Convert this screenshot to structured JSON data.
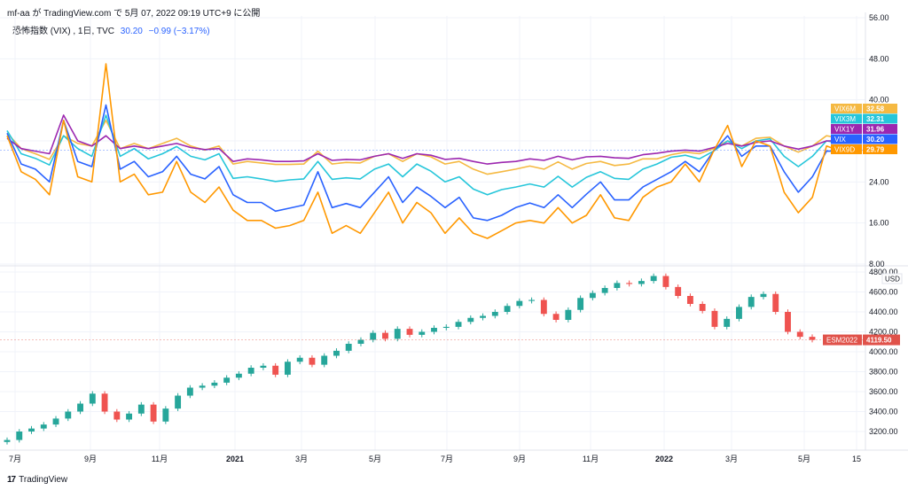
{
  "header": {
    "author": "mf-aa",
    "via": "が",
    "platform": "TradingView.com",
    "rest": "で 5月 07, 2022 09:19 UTC+9 に公開"
  },
  "legend": {
    "title": "恐怖指数 (VIX) , 1日, TVC",
    "value": "30.20",
    "change": "−0.99 (−3.17%)"
  },
  "footer": {
    "brand": "TradingView"
  },
  "colors": {
    "VIX": "#2962ff",
    "VIX9D": "#ff9800",
    "VIX3M": "#26c6da",
    "VIX6M": "#f5b942",
    "VIX1Y": "#9c27b0",
    "ESM2022": "#e0524a",
    "up": "#26a69a",
    "down": "#ef5350"
  },
  "chart_data": [
    {
      "type": "line",
      "title": "恐怖指数 (VIX) , 1日, TVC",
      "ylim": [
        8,
        56
      ],
      "y_ticks": [
        "56.00",
        "48.00",
        "40.00",
        "32.00",
        "24.00",
        "16.00",
        "8.00"
      ],
      "x_labels": [
        "7月",
        "9月",
        "11月",
        "2021",
        "3月",
        "5月",
        "7月",
        "9月",
        "11月",
        "2022",
        "3月",
        "5月",
        "15"
      ],
      "series": [
        {
          "name": "VIX6M",
          "last": "32.58",
          "values": [
            33.5,
            30.5,
            29.5,
            28.4,
            33,
            31.5,
            31,
            36,
            30.5,
            31.5,
            30.5,
            31.5,
            32.5,
            31,
            30.2,
            31,
            27.5,
            28,
            27.7,
            27.4,
            27.4,
            27.5,
            30,
            27.5,
            27.8,
            27.7,
            29,
            29.5,
            28,
            29.5,
            28.9,
            27.5,
            28,
            26.5,
            25.5,
            26,
            26.5,
            27.1,
            26.5,
            27.9,
            26.5,
            27.6,
            28,
            27.2,
            27.5,
            28.5,
            28.5,
            29.3,
            29.8,
            29.5,
            30.5,
            32,
            31,
            32.5,
            32.7,
            31,
            29.8,
            31,
            33,
            32.5,
            32.58
          ]
        },
        {
          "name": "VIX3M",
          "last": "32.31",
          "values": [
            34,
            29.5,
            28.6,
            27.3,
            33,
            30.5,
            29,
            37,
            29,
            30.5,
            28.5,
            29.5,
            30.9,
            29,
            28.3,
            29.5,
            24.7,
            25,
            24.6,
            24.1,
            24.4,
            24.6,
            28,
            24.5,
            24.8,
            24.6,
            26.5,
            27.5,
            25,
            27.5,
            26.1,
            24,
            25,
            22.6,
            21.5,
            22.5,
            23,
            23.6,
            23,
            25.1,
            23,
            24.9,
            26,
            24.7,
            24.5,
            26.5,
            27.5,
            28.8,
            29.2,
            28.5,
            30,
            32,
            30.5,
            32,
            32.4,
            29,
            27,
            29,
            32,
            31.5,
            32.31
          ]
        },
        {
          "name": "VIX1Y",
          "last": "31.96",
          "values": [
            32.5,
            30.5,
            30,
            29.5,
            37,
            32,
            31,
            33,
            30.5,
            31,
            30.5,
            31,
            31.5,
            30.7,
            30.3,
            30.5,
            28,
            28.5,
            28.3,
            28,
            28,
            28.1,
            29.5,
            28.2,
            28.4,
            28.3,
            29,
            29.5,
            28.6,
            29.5,
            29.2,
            28.4,
            28.6,
            28,
            27.5,
            27.8,
            28,
            28.5,
            28.2,
            29,
            28.3,
            28.9,
            29,
            28.7,
            28.6,
            29.3,
            29.6,
            30,
            30.2,
            30,
            30.7,
            31.5,
            31,
            31.7,
            32,
            31,
            30.4,
            31,
            32,
            32,
            31.96
          ]
        },
        {
          "name": "VIX",
          "last": "30.20",
          "values": [
            33.5,
            27.5,
            26.5,
            24,
            36,
            28,
            27,
            39,
            26.5,
            28,
            25,
            26,
            29,
            25.5,
            24.6,
            27,
            21.5,
            20,
            20,
            18.3,
            18.9,
            19.5,
            26,
            19,
            19.8,
            19,
            22,
            25,
            20,
            23,
            21.2,
            19,
            21,
            17,
            16.5,
            17.5,
            19,
            19.9,
            19,
            21.5,
            19,
            21.6,
            24,
            20.5,
            20.5,
            23,
            24.5,
            26,
            28,
            26,
            30,
            33,
            29,
            31,
            31,
            26,
            22,
            25,
            30,
            30,
            30.2
          ]
        },
        {
          "name": "VIX9D",
          "last": "29.79",
          "values": [
            33,
            26,
            24.5,
            21.5,
            36,
            25,
            24,
            47,
            24,
            25.5,
            21.5,
            22,
            28,
            22,
            20,
            23,
            18.5,
            16.5,
            16.5,
            15,
            15.5,
            16.5,
            22,
            14,
            15.5,
            14,
            18,
            22,
            16,
            20,
            18,
            14,
            17,
            14,
            13,
            14.5,
            16,
            16.5,
            16,
            19,
            16,
            17.5,
            21.5,
            17,
            16.5,
            21,
            23,
            24,
            27.5,
            24,
            30,
            35,
            27,
            32,
            31,
            22,
            18,
            21,
            31,
            30,
            29.79
          ]
        }
      ]
    },
    {
      "type": "candlestick",
      "ylim": [
        3000,
        4800
      ],
      "y_ticks": [
        "4800.00",
        "4600.00",
        "4400.00",
        "4200.00",
        "4000.00",
        "3800.00",
        "3600.00",
        "3400.00",
        "3200.00"
      ],
      "y_unit": "USD",
      "series": [
        {
          "name": "ESM2022",
          "last": "4119.50",
          "close": [
            3115,
            3200,
            3230,
            3270,
            3330,
            3400,
            3480,
            3580,
            3400,
            3320,
            3380,
            3470,
            3300,
            3430,
            3560,
            3640,
            3660,
            3690,
            3740,
            3780,
            3840,
            3860,
            3770,
            3900,
            3940,
            3870,
            3960,
            4010,
            4080,
            4120,
            4190,
            4130,
            4230,
            4170,
            4200,
            4240,
            4250,
            4300,
            4340,
            4360,
            4400,
            4460,
            4510,
            4520,
            4380,
            4320,
            4420,
            4540,
            4590,
            4640,
            4690,
            4680,
            4710,
            4760,
            4650,
            4560,
            4480,
            4410,
            4250,
            4330,
            4450,
            4550,
            4580,
            4400,
            4200,
            4150,
            4119.5
          ]
        }
      ]
    }
  ]
}
